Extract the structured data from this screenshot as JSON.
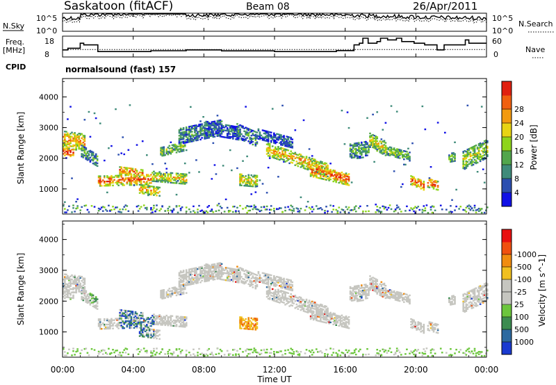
{
  "header": {
    "station": "Saskatoon (fitACF)",
    "beam": "Beam 08",
    "date": "26/Apr/2011"
  },
  "noise_panel": {
    "left_label": "N.Sky",
    "right_label": "N.Search",
    "left_ticks": [
      "10^5",
      "10^0"
    ],
    "right_ticks": [
      "10^5",
      "10^0"
    ]
  },
  "freq_panel": {
    "left_label_line1": "Freq.",
    "left_label_line2": "[MHz]",
    "right_label": "Nave",
    "left_ticks": [
      "18",
      "8"
    ],
    "right_ticks": [
      "60",
      "0"
    ]
  },
  "cpid": {
    "label": "CPID",
    "value": "normalsound (fast) 157"
  },
  "chart_data": [
    {
      "type": "heatmap",
      "name": "power",
      "ylabel": "Slant Range [km]",
      "yticks": [
        1000,
        2000,
        3000,
        4000
      ],
      "ylim": [
        180,
        4600
      ],
      "colorbar_label": "Power [dB]",
      "colorbar_ticks": [
        "4",
        "8",
        "12",
        "16",
        "20",
        "24",
        "28"
      ],
      "colorbar_colors": [
        "#1010e6",
        "#2c4fb0",
        "#3f8b7a",
        "#52a64c",
        "#8ed41c",
        "#e8d414",
        "#f39a10",
        "#f06010",
        "#e02010"
      ]
    },
    {
      "type": "heatmap",
      "name": "velocity",
      "ylabel": "Slant Range [km]",
      "yticks": [
        1000,
        2000,
        3000,
        4000
      ],
      "ylim": [
        180,
        4600
      ],
      "colorbar_label": "Velocity [m s^-1]",
      "colorbar_ticks": [
        "1000",
        "500",
        "100",
        "25",
        "-25",
        "-100",
        "-500",
        "-1000"
      ],
      "colorbar_colors": [
        "#1a3ad0",
        "#2d6aa0",
        "#3c8c50",
        "#6cc63c",
        "#c6c6c0",
        "#c6c6c0",
        "#f0c020",
        "#f08c10",
        "#f05010",
        "#e81010"
      ]
    }
  ],
  "time_axis": {
    "label": "Time UT",
    "ticks": [
      "00:00",
      "04:00",
      "08:00",
      "12:00",
      "16:00",
      "20:00",
      "00:00"
    ]
  },
  "colors": {
    "ground_scatter": "#c6c6c0"
  }
}
